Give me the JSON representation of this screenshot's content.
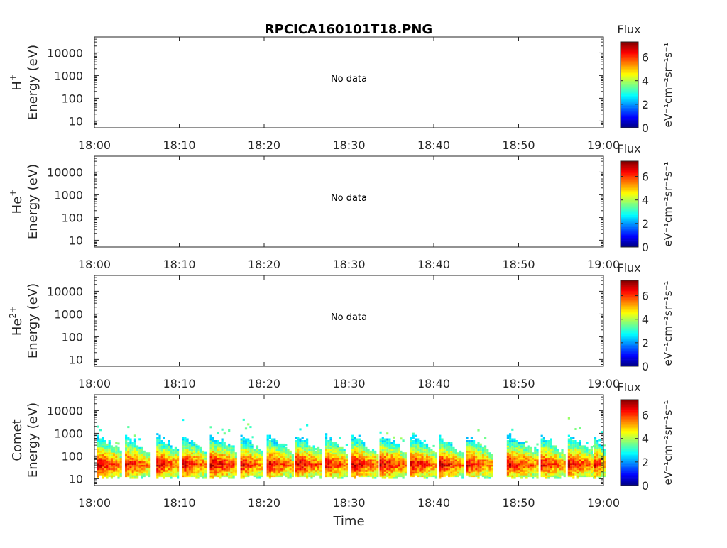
{
  "title": "RPCICA160101T18.PNG",
  "xlabel": "Time",
  "x_ticks": [
    "18:00",
    "18:10",
    "18:20",
    "18:30",
    "18:40",
    "18:50",
    "19:00"
  ],
  "y_ticks": [
    "10",
    "100",
    "1000",
    "10000"
  ],
  "colorbar": {
    "label_top": "Flux",
    "unit_label": "eV⁻¹cm⁻²sr⁻¹s⁻¹",
    "ticks": [
      "0",
      "2",
      "4",
      "6"
    ],
    "range": [
      0,
      7.3
    ],
    "colormap": "jet"
  },
  "chart_data": [
    {
      "type": "heatmap",
      "panel": "H+",
      "ylabel_species": "H",
      "ylabel_sup": "+",
      "ylabel_unit": "Energy (eV)",
      "annotation": "No data",
      "xlim": [
        "18:00",
        "19:00"
      ],
      "ylim_log10": [
        0.7,
        4.7
      ],
      "scale": "log",
      "values": []
    },
    {
      "type": "heatmap",
      "panel": "He+",
      "ylabel_species": "He",
      "ylabel_sup": "+",
      "ylabel_unit": "Energy (eV)",
      "annotation": "No data",
      "xlim": [
        "18:00",
        "19:00"
      ],
      "ylim_log10": [
        0.7,
        4.7
      ],
      "scale": "log",
      "values": []
    },
    {
      "type": "heatmap",
      "panel": "He2+",
      "ylabel_species": "He",
      "ylabel_sup": "2+",
      "ylabel_unit": "Energy (eV)",
      "annotation": "No data",
      "xlim": [
        "18:00",
        "19:00"
      ],
      "ylim_log10": [
        0.7,
        4.7
      ],
      "scale": "log",
      "values": []
    },
    {
      "type": "heatmap",
      "panel": "Comet",
      "ylabel_species": "Comet",
      "ylabel_sup": "",
      "ylabel_unit": "Energy (eV)",
      "annotation": "",
      "xlim": [
        "18:00",
        "19:00"
      ],
      "ylim_log10": [
        0.7,
        4.7
      ],
      "scale": "log",
      "flux_range": [
        0,
        7.3
      ],
      "bursts": [
        {
          "start_min": 0.3,
          "end_min": 3.2,
          "peak_flux": 6.8
        },
        {
          "start_min": 3.6,
          "end_min": 6.3,
          "peak_flux": 6.6
        },
        {
          "start_min": 7.3,
          "end_min": 9.8,
          "peak_flux": 6.7
        },
        {
          "start_min": 10.3,
          "end_min": 13.2,
          "peak_flux": 6.7
        },
        {
          "start_min": 13.6,
          "end_min": 16.8,
          "peak_flux": 6.9
        },
        {
          "start_min": 17.2,
          "end_min": 19.8,
          "peak_flux": 6.6
        },
        {
          "start_min": 20.3,
          "end_min": 23.3,
          "peak_flux": 6.7
        },
        {
          "start_min": 23.6,
          "end_min": 26.8,
          "peak_flux": 6.8
        },
        {
          "start_min": 27.2,
          "end_min": 29.8,
          "peak_flux": 6.6
        },
        {
          "start_min": 30.3,
          "end_min": 33.3,
          "peak_flux": 6.9
        },
        {
          "start_min": 33.6,
          "end_min": 36.8,
          "peak_flux": 6.8
        },
        {
          "start_min": 37.2,
          "end_min": 40.3,
          "peak_flux": 6.7
        },
        {
          "start_min": 40.6,
          "end_min": 43.3,
          "peak_flux": 6.8
        },
        {
          "start_min": 43.8,
          "end_min": 46.8,
          "peak_flux": 6.6
        },
        {
          "start_min": 48.6,
          "end_min": 52.3,
          "peak_flux": 6.7
        },
        {
          "start_min": 52.6,
          "end_min": 55.3,
          "peak_flux": 6.6
        },
        {
          "start_min": 55.8,
          "end_min": 58.8,
          "peak_flux": 6.7
        },
        {
          "start_min": 58.9,
          "end_min": 60.0,
          "peak_flux": 6.6
        }
      ]
    }
  ]
}
